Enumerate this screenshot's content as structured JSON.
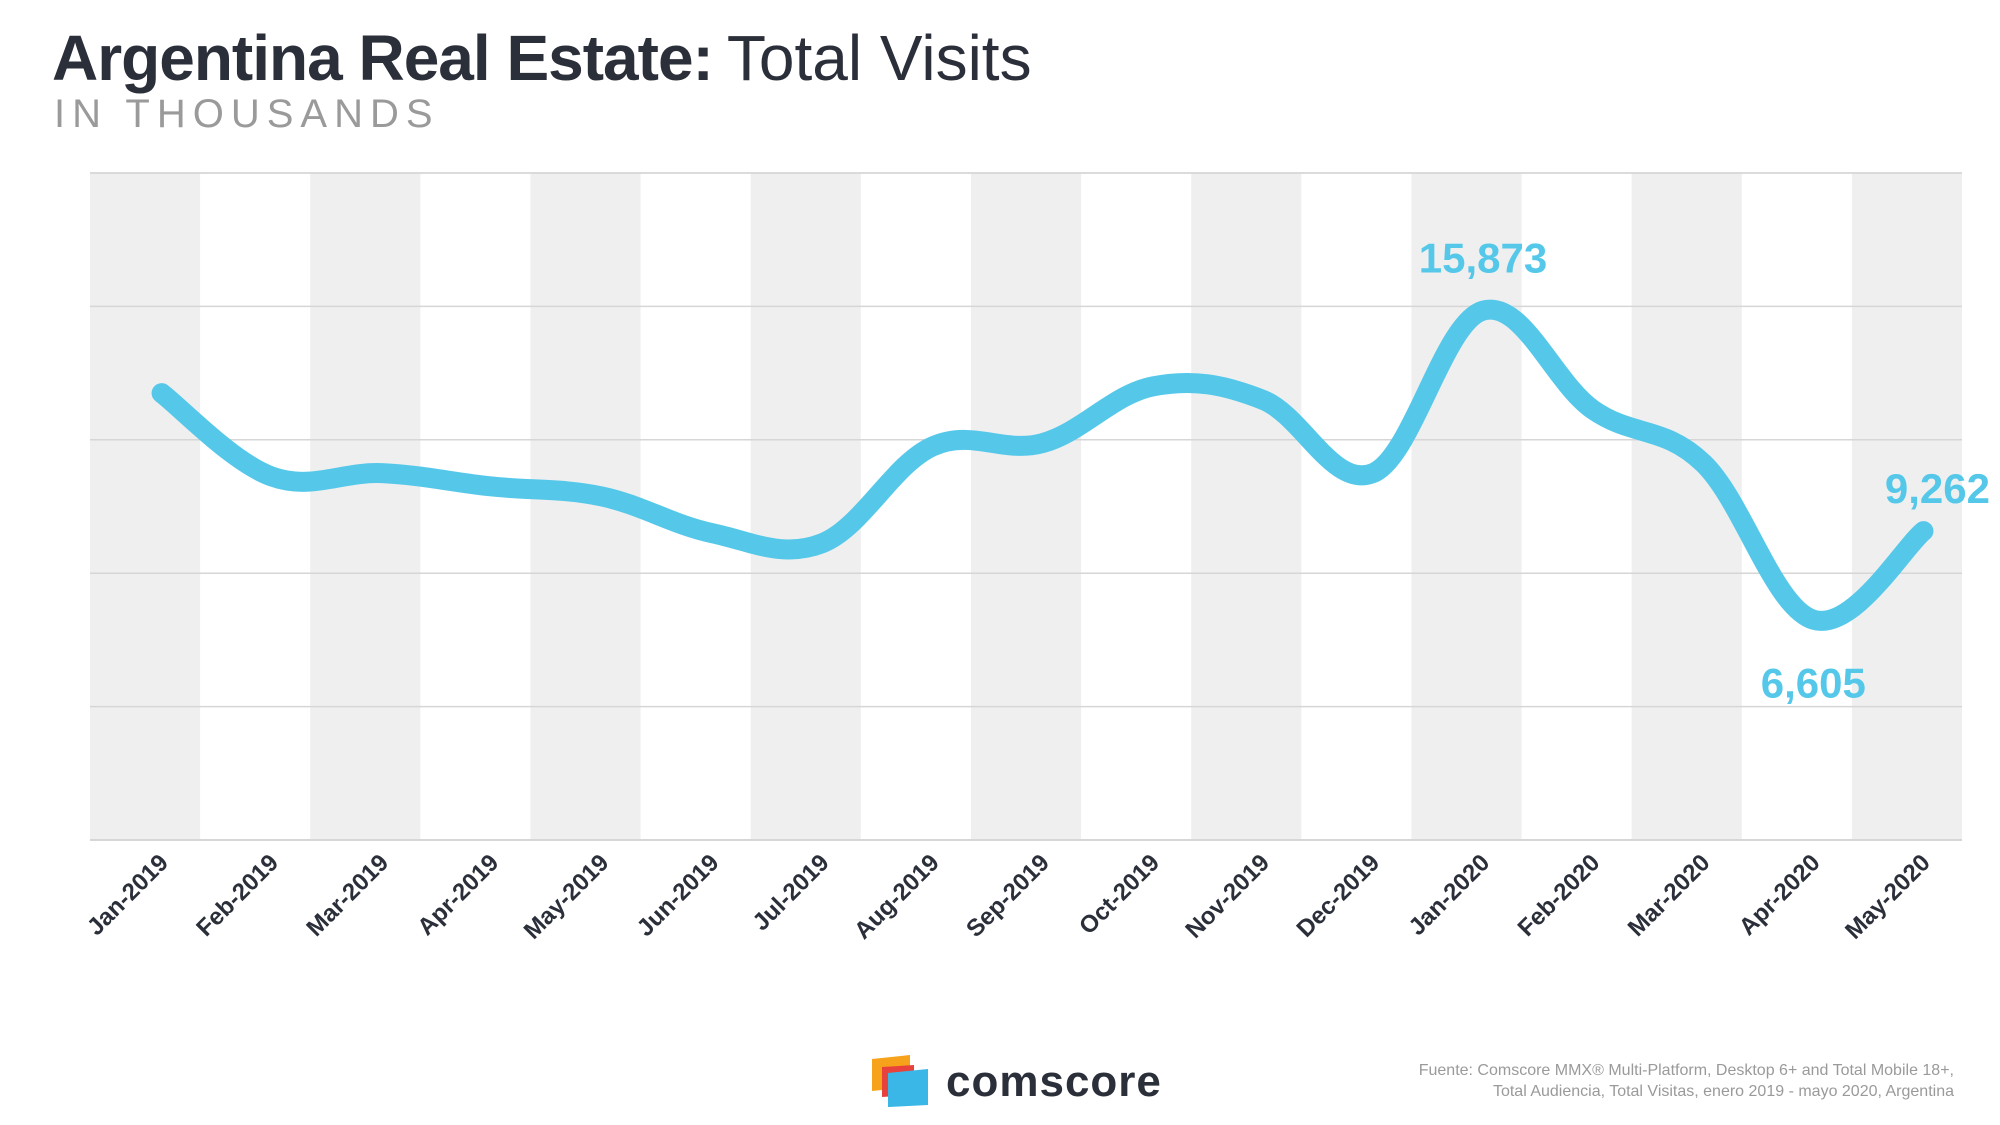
{
  "header": {
    "title_bold": "Argentina Real Estate:",
    "title_light": "Total Visits",
    "subtitle": "IN THOUSANDS"
  },
  "brand": {
    "name": "comscore",
    "logo_icon": "comscore-logo-icon"
  },
  "footer": {
    "source_line1": "Fuente: Comscore MMX® Multi-Platform, Desktop 6+ and Total Mobile 18+,",
    "source_line2": "Total Audiencia, Total Visitas, enero 2019 - mayo 2020, Argentina"
  },
  "colors": {
    "line": "#55c8ea",
    "band": "#efefef",
    "grid": "#d6d6d6",
    "title": "#2b2f3a",
    "muted": "#9a9a9a",
    "logo_orange": "#f7a21b",
    "logo_red": "#e8423c",
    "logo_blue": "#3ab7e6"
  },
  "chart_data": {
    "type": "line",
    "title": "Argentina Real Estate: Total Visits",
    "subtitle": "IN THOUSANDS",
    "categories": [
      "Jan-2019",
      "Feb-2019",
      "Mar-2019",
      "Apr-2019",
      "May-2019",
      "Jun-2019",
      "Jul-2019",
      "Aug-2019",
      "Sep-2019",
      "Oct-2019",
      "Nov-2019",
      "Dec-2019",
      "Jan-2020",
      "Feb-2020",
      "Mar-2020",
      "Apr-2020",
      "May-2020"
    ],
    "series": [
      {
        "values": [
          13400,
          10900,
          11000,
          10600,
          10300,
          9200,
          8900,
          11800,
          11900,
          13600,
          13200,
          11000,
          15873,
          12900,
          11300,
          6605,
          9262
        ]
      }
    ],
    "data_labels": [
      {
        "index": 12,
        "text": "15,873"
      },
      {
        "index": 15,
        "text": "6,605"
      },
      {
        "index": 16,
        "text": "9,262"
      }
    ],
    "ylim": [
      0,
      20000
    ],
    "gridlines": [
      4000,
      8000,
      12000,
      16000,
      20000
    ],
    "grid": true,
    "alternating_bands": true,
    "legend": "none"
  }
}
